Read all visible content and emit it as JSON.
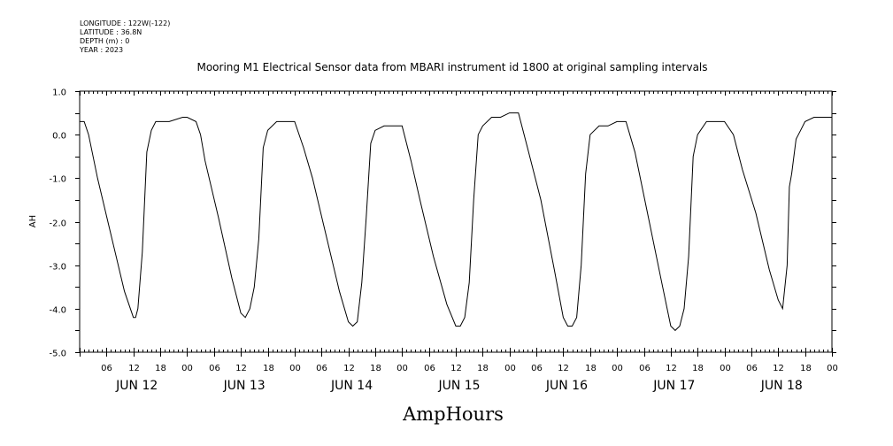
{
  "header": {
    "longitude": "LONGITUDE : 122W(-122)",
    "latitude": "LATITUDE : 36.8N",
    "depth": "DEPTH (m) : 0",
    "year": "YEAR : 2023"
  },
  "chart_data": {
    "type": "line",
    "title": "Mooring M1 Electrical Sensor data from MBARI instrument id 1800 at original sampling intervals",
    "xlabel": "AmpHours",
    "ylabel": "AH",
    "ylim": [
      -5.0,
      1.0
    ],
    "yticks": [
      "1.0",
      "0.0",
      "-1.0",
      "-2.0",
      "-3.0",
      "-4.0",
      "-5.0"
    ],
    "xlim_hours": [
      0,
      168
    ],
    "hour_tick_labels": [
      "06",
      "12",
      "18",
      "00"
    ],
    "day_labels": [
      "JUN 12",
      "JUN 13",
      "JUN 14",
      "JUN 15",
      "JUN 16",
      "JUN 17",
      "JUN 18"
    ],
    "series": [
      {
        "color": "#000000",
        "x_hours": [
          0,
          1,
          2,
          4,
          7,
          10,
          12,
          12.5,
          13,
          14,
          15,
          16,
          17,
          18,
          20,
          23,
          24,
          26,
          27,
          28,
          31,
          34,
          36,
          37,
          38,
          39,
          40,
          41,
          42,
          44,
          47,
          48,
          50,
          52,
          55,
          58,
          60,
          61,
          62,
          63,
          64,
          65,
          66,
          68,
          70,
          72,
          74,
          76,
          79,
          82,
          84,
          85,
          86,
          87,
          88,
          89,
          90,
          92,
          94,
          96,
          98,
          100,
          103,
          106,
          108,
          109,
          110,
          111,
          112,
          113,
          114,
          116,
          118,
          120,
          122,
          124,
          127,
          130,
          132,
          133,
          134,
          135,
          136,
          137,
          138,
          140,
          142,
          144,
          146,
          148,
          151,
          154,
          156,
          157,
          158,
          158.5,
          159,
          160,
          161,
          162,
          164,
          168
        ],
        "y": [
          0.3,
          0.3,
          0.0,
          -1.0,
          -2.3,
          -3.6,
          -4.2,
          -4.2,
          -4.0,
          -2.7,
          -0.4,
          0.1,
          0.3,
          0.3,
          0.3,
          0.4,
          0.4,
          0.3,
          0.0,
          -0.6,
          -1.9,
          -3.3,
          -4.1,
          -4.2,
          -4.0,
          -3.5,
          -2.4,
          -0.3,
          0.1,
          0.3,
          0.3,
          0.3,
          -0.3,
          -1.0,
          -2.3,
          -3.6,
          -4.3,
          -4.4,
          -4.3,
          -3.4,
          -1.9,
          -0.2,
          0.1,
          0.2,
          0.2,
          0.2,
          -0.6,
          -1.5,
          -2.8,
          -3.9,
          -4.4,
          -4.4,
          -4.2,
          -3.4,
          -1.5,
          0.0,
          0.2,
          0.4,
          0.4,
          0.5,
          0.5,
          -0.3,
          -1.5,
          -3.1,
          -4.2,
          -4.4,
          -4.4,
          -4.2,
          -3.0,
          -0.9,
          0.0,
          0.2,
          0.2,
          0.3,
          0.3,
          -0.4,
          -1.9,
          -3.4,
          -4.4,
          -4.5,
          -4.4,
          -4.0,
          -2.8,
          -0.5,
          0.0,
          0.3,
          0.3,
          0.3,
          0.0,
          -0.8,
          -1.8,
          -3.1,
          -3.8,
          -4.0,
          -3.0,
          -1.2,
          -0.9,
          -0.1,
          0.1,
          0.3,
          0.4,
          0.4
        ]
      }
    ]
  }
}
